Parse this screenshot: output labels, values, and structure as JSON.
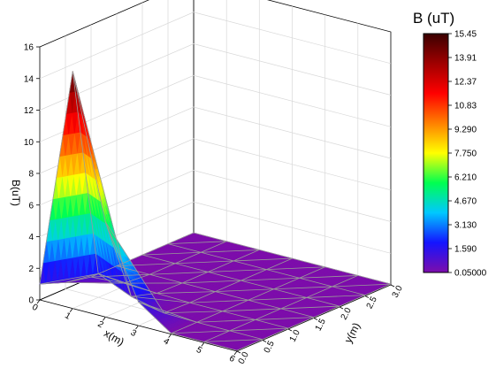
{
  "chart_data": {
    "type": "surface",
    "title": "",
    "xlabel": "x(m)",
    "ylabel": "y(m)",
    "zlabel": "B(uT)",
    "x_ticks": [
      "0",
      "1",
      "2",
      "3",
      "4",
      "5",
      "6"
    ],
    "y_ticks": [
      "0.0",
      "0.5",
      "1.0",
      "1.5",
      "2.0",
      "2.5",
      "3.0"
    ],
    "z_ticks": [
      "0",
      "2",
      "4",
      "6",
      "8",
      "10",
      "12",
      "14",
      "16"
    ],
    "xlim": [
      0,
      6
    ],
    "ylim": [
      0,
      3
    ],
    "zlim": [
      0,
      16
    ],
    "x": [
      0,
      1,
      2,
      3,
      4,
      5,
      6
    ],
    "y": [
      0,
      0.5,
      1.0,
      1.5,
      2.0,
      2.5,
      3.0
    ],
    "z_rows_by_y": [
      [
        1,
        15,
        6,
        1.5,
        0.05,
        0.05,
        0.05
      ],
      [
        0.4,
        1.5,
        0.6,
        0.1,
        0.05,
        0.05,
        0.05
      ],
      [
        0.05,
        0.2,
        0.1,
        0.05,
        0.05,
        0.05,
        0.05
      ],
      [
        0.05,
        0.05,
        0.05,
        0.05,
        0.05,
        0.05,
        0.05
      ],
      [
        0.05,
        0.05,
        0.05,
        0.05,
        0.05,
        0.05,
        0.05
      ],
      [
        0.05,
        0.05,
        0.05,
        0.05,
        0.05,
        0.05,
        0.05
      ],
      [
        0.05,
        0.05,
        0.05,
        0.05,
        0.05,
        0.05,
        0.05
      ]
    ],
    "grid": true,
    "colorbar": {
      "title": "B (uT)",
      "labels": [
        "15.45",
        "13.91",
        "12.37",
        "10.83",
        "9.290",
        "7.750",
        "6.210",
        "4.670",
        "3.130",
        "1.590",
        "0.05000"
      ],
      "min": 0.05,
      "max": 15.45,
      "colormap": [
        "#7d0dab",
        "#1414ff",
        "#00c8ff",
        "#00ff50",
        "#ffff00",
        "#ff8000",
        "#ff0000",
        "#a00000",
        "#3a0000"
      ]
    }
  }
}
